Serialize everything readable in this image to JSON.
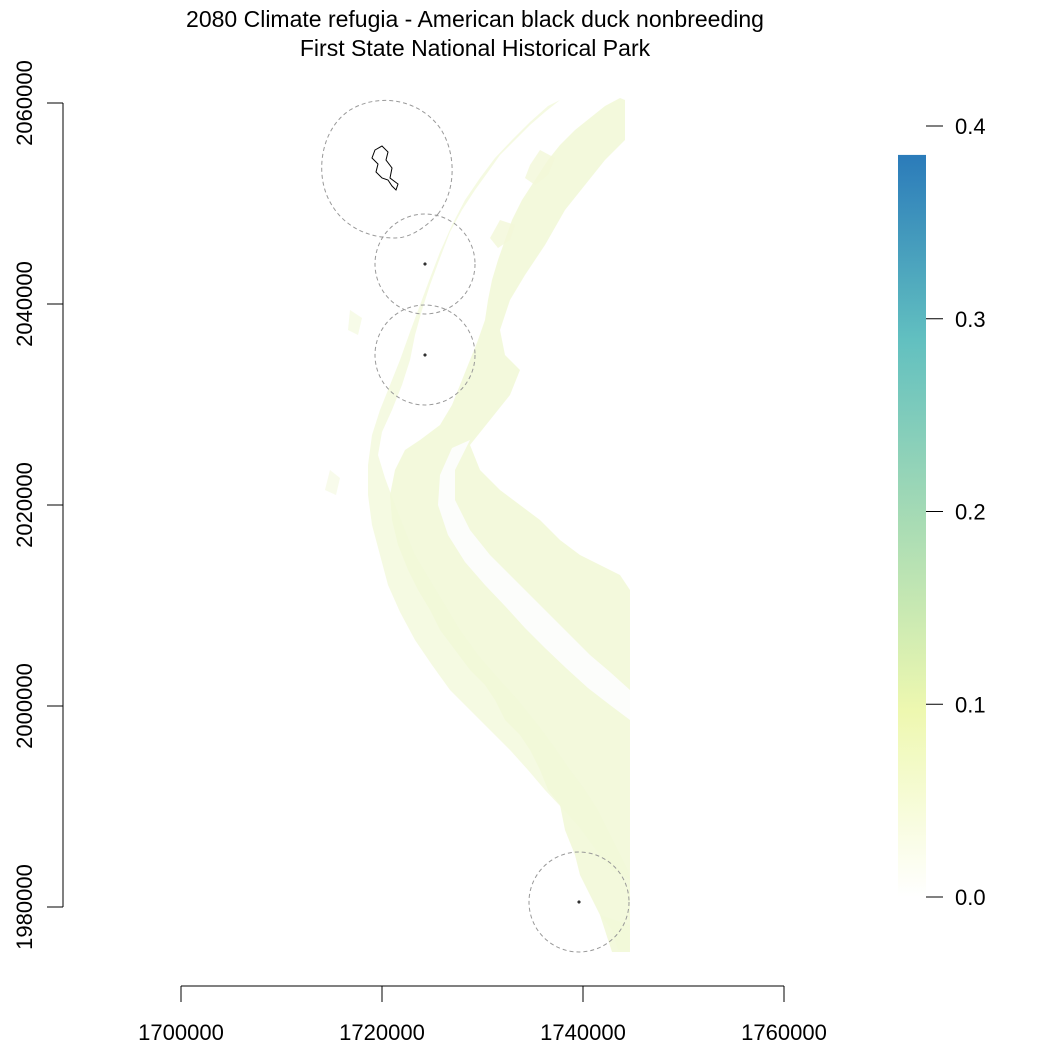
{
  "title": {
    "line1": "2080 Climate refugia - American black duck nonbreeding",
    "line2": "First State National Historical Park"
  },
  "x_axis": {
    "ticks": [
      {
        "value": 1700000,
        "label": "1700000"
      },
      {
        "value": 1720000,
        "label": "1720000"
      },
      {
        "value": 1740000,
        "label": "1740000"
      },
      {
        "value": 1760000,
        "label": "1760000"
      }
    ]
  },
  "y_axis": {
    "ticks": [
      {
        "value": 1980000,
        "label": "1980000"
      },
      {
        "value": 2000000,
        "label": "2000000"
      },
      {
        "value": 2020000,
        "label": "2020000"
      },
      {
        "value": 2040000,
        "label": "2040000"
      },
      {
        "value": 2060000,
        "label": "2060000"
      }
    ]
  },
  "legend": {
    "ticks": [
      {
        "value": 0.0,
        "label": "0.0"
      },
      {
        "value": 0.1,
        "label": "0.1"
      },
      {
        "value": 0.2,
        "label": "0.2"
      },
      {
        "value": 0.3,
        "label": "0.3"
      },
      {
        "value": 0.4,
        "label": "0.4"
      }
    ],
    "value_range": [
      0.0,
      0.385
    ],
    "colors": [
      "#ffffff",
      "#eef8b0",
      "#a9dcb4",
      "#62c0c0",
      "#2b7bba"
    ]
  },
  "map": {
    "raster_color": "#f2f8d8",
    "boundary_color": "#000000",
    "buffer_color": "#999999"
  }
}
